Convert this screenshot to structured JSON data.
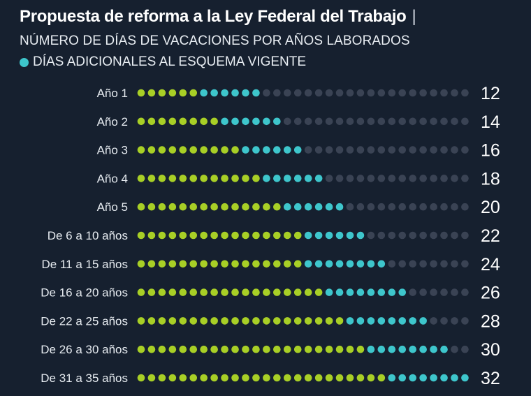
{
  "title": "Propuesta de reforma a la Ley Federal del Trabajo",
  "title_separator": "|",
  "subtitle": "NÚMERO DE DÍAS DE VACACIONES POR AÑOS LABORADOS",
  "legend_label": "DÍAS ADICIONALES AL ESQUEMA VIGENTE",
  "colors": {
    "background": "#16202f",
    "current": "#a8cf26",
    "additional": "#3ec6cc",
    "empty": "#3a4354",
    "text": "#ffffff"
  },
  "chart_data": {
    "type": "dot-plot",
    "unit": "días",
    "max_dots": 32,
    "categories": [
      "Año 1",
      "Año 2",
      "Año 3",
      "Año 4",
      "Año 5",
      "De 6 a 10 años",
      "De 11 a 15 años",
      "De 16 a 20 años",
      "De 22 a 25 años",
      "De 26 a 30 años",
      "De 31 a 35 años"
    ],
    "series": [
      {
        "name": "",
        "values": [
          6,
          8,
          10,
          12,
          14,
          16,
          16,
          18,
          20,
          22,
          24
        ]
      },
      {
        "name": "DÍAS ADICIONALES AL ESQUEMA VIGENTE",
        "values": [
          6,
          6,
          6,
          6,
          6,
          6,
          8,
          8,
          8,
          8,
          8
        ]
      }
    ],
    "totals": [
      "12",
      "14",
      "16",
      "18",
      "20",
      "22",
      "24",
      "26",
      "28",
      "30",
      "32"
    ]
  }
}
